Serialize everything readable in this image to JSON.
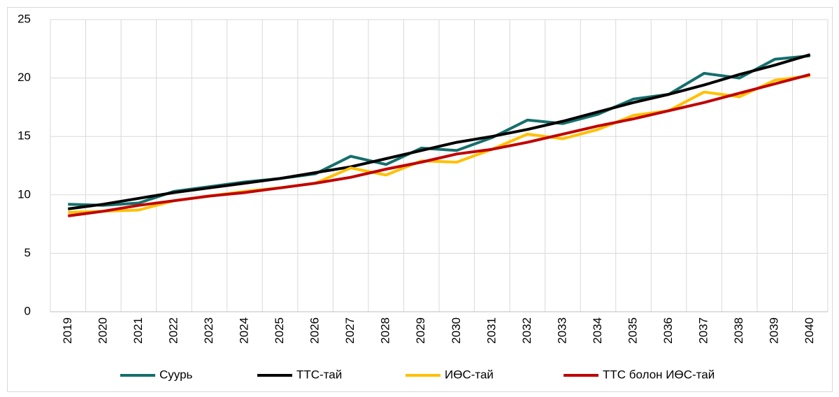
{
  "chart_data": {
    "type": "line",
    "categories": [
      "2019",
      "2020",
      "2021",
      "2022",
      "2023",
      "2024",
      "2025",
      "2026",
      "2027",
      "2028",
      "2029",
      "2030",
      "2031",
      "2032",
      "2033",
      "2034",
      "2035",
      "2036",
      "2037",
      "2038",
      "2039",
      "2040"
    ],
    "series": [
      {
        "name": "Суурь",
        "color": "#156f6b",
        "values": [
          9.2,
          9.1,
          9.3,
          10.3,
          10.7,
          11.1,
          11.4,
          11.8,
          13.3,
          12.6,
          14.0,
          13.8,
          14.9,
          16.4,
          16.1,
          16.9,
          18.2,
          18.6,
          20.4,
          20.0,
          21.6,
          21.9
        ]
      },
      {
        "name": "ТТС-тай",
        "color": "#000000",
        "values": [
          8.8,
          9.2,
          9.7,
          10.2,
          10.6,
          11.0,
          11.4,
          11.9,
          12.4,
          13.1,
          13.8,
          14.5,
          15.0,
          15.6,
          16.3,
          17.1,
          17.9,
          18.6,
          19.4,
          20.3,
          21.1,
          22.0
        ]
      },
      {
        "name": "ИӨС-тай",
        "color": "#ffc000",
        "values": [
          8.5,
          8.6,
          8.7,
          9.5,
          9.9,
          10.3,
          10.6,
          11.0,
          12.3,
          11.7,
          12.9,
          12.8,
          13.9,
          15.2,
          14.8,
          15.6,
          16.8,
          17.2,
          18.8,
          18.4,
          19.8,
          20.2
        ]
      },
      {
        "name": "ТТС болон ИӨС-тай",
        "color": "#c00000",
        "values": [
          8.2,
          8.6,
          9.1,
          9.5,
          9.9,
          10.2,
          10.6,
          11.0,
          11.5,
          12.2,
          12.8,
          13.5,
          13.9,
          14.5,
          15.2,
          15.9,
          16.5,
          17.2,
          17.9,
          18.7,
          19.5,
          20.3
        ]
      }
    ],
    "ylim": [
      0,
      25
    ],
    "yticks": [
      0,
      5,
      10,
      15,
      20,
      25
    ],
    "grid": true,
    "legend": "bottom"
  }
}
